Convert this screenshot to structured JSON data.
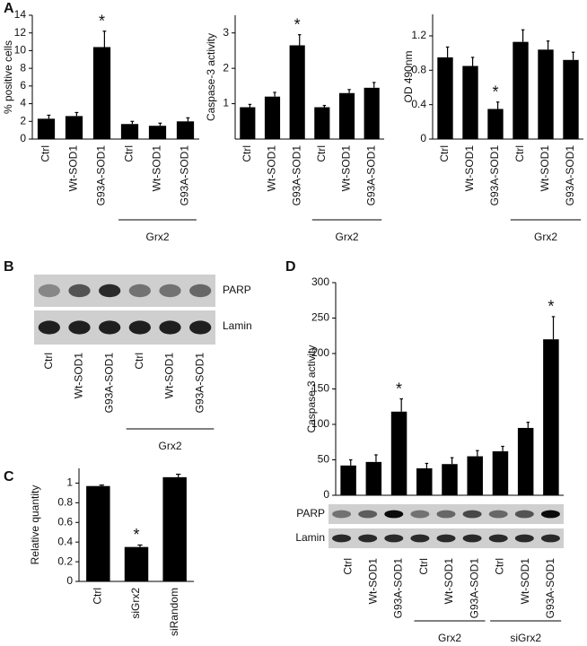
{
  "panel_labels": [
    "A",
    "B",
    "C",
    "D"
  ],
  "blot": {
    "rows": [
      "PARP",
      "Lamin"
    ],
    "categories": [
      "Ctrl",
      "Wt-SOD1",
      "G93A-SOD1",
      "Ctrl",
      "Wt-SOD1",
      "G93A-SOD1"
    ],
    "group_labels": [
      null,
      null,
      null,
      "Grx2",
      "Grx2",
      "Grx2"
    ]
  },
  "chart_data": [
    {
      "type": "bar",
      "y_label": "% positive cells",
      "color": "#000000",
      "categories": [
        "Ctrl",
        "Wt-SOD1",
        "G93A-SOD1",
        "Ctrl",
        "Wt-SOD1",
        "G93A-SOD1"
      ],
      "values": [
        2.3,
        2.6,
        10.4,
        1.7,
        1.5,
        2.0
      ],
      "errors": [
        0.4,
        0.4,
        1.8,
        0.3,
        0.3,
        0.4
      ],
      "annotations": [
        null,
        null,
        "*",
        null,
        null,
        null
      ],
      "group_labels": [
        null,
        null,
        null,
        "Grx2",
        "Grx2",
        "Grx2"
      ],
      "ylim": [
        0,
        14
      ],
      "yticks": [
        0,
        2,
        4,
        6,
        8,
        10,
        12,
        14
      ]
    },
    {
      "type": "bar",
      "y_label": "Caspase-3 activity",
      "color": "#000000",
      "categories": [
        "Ctrl",
        "Wt-SOD1",
        "G93A-SOD1",
        "Ctrl",
        "Wt-SOD1",
        "G93A-SOD1"
      ],
      "values": [
        0.9,
        1.2,
        2.65,
        0.9,
        1.3,
        1.45
      ],
      "errors": [
        0.08,
        0.12,
        0.3,
        0.05,
        0.1,
        0.15
      ],
      "annotations": [
        null,
        null,
        "*",
        null,
        null,
        null
      ],
      "group_labels": [
        null,
        null,
        null,
        "Grx2",
        "Grx2",
        "Grx2"
      ],
      "ylim": [
        0,
        3.5
      ],
      "yticks": [
        1,
        2,
        3
      ]
    },
    {
      "type": "bar",
      "y_label": "OD 490nm",
      "color": "#000000",
      "categories": [
        "Ctrl",
        "Wt-SOD1",
        "G93A-SOD1",
        "Ctrl",
        "Wt-SOD1",
        "G93A-SOD1"
      ],
      "values": [
        0.95,
        0.85,
        0.35,
        1.13,
        1.04,
        0.92
      ],
      "errors": [
        0.12,
        0.1,
        0.08,
        0.14,
        0.1,
        0.09
      ],
      "annotations": [
        null,
        null,
        "*",
        null,
        null,
        null
      ],
      "group_labels": [
        null,
        null,
        null,
        "Grx2",
        "Grx2",
        "Grx2"
      ],
      "ylim": [
        0,
        1.45
      ],
      "yticks": [
        0,
        0.4,
        0.8,
        1.2
      ]
    },
    {
      "type": "bar",
      "y_label": "Relative quantity",
      "color": "#000000",
      "categories": [
        "Ctrl",
        "siGrx2",
        "siRandom"
      ],
      "values": [
        0.97,
        0.35,
        1.06
      ],
      "errors": [
        0.01,
        0.02,
        0.03
      ],
      "annotations": [
        null,
        "*",
        null
      ],
      "group_labels": [
        null,
        null,
        null
      ],
      "ylim": [
        0,
        1.15
      ],
      "yticks": [
        0,
        0.2,
        0.4,
        0.6,
        0.8,
        1
      ]
    },
    {
      "type": "bar",
      "y_label": "Caspase-3 activity",
      "color": "#000000",
      "categories": [
        "Ctrl",
        "Wt-SOD1",
        "G93A-SOD1",
        "Ctrl",
        "Wt-SOD1",
        "G93A-SOD1",
        "Ctrl",
        "Wt-SOD1",
        "G93A-SOD1"
      ],
      "values": [
        42,
        47,
        118,
        38,
        44,
        55,
        62,
        95,
        220
      ],
      "errors": [
        8,
        10,
        18,
        7,
        9,
        8,
        7,
        8,
        32
      ],
      "annotations": [
        null,
        null,
        "*",
        null,
        null,
        null,
        null,
        null,
        "*"
      ],
      "group_labels": [
        null,
        null,
        null,
        "Grx2",
        "Grx2",
        "Grx2",
        "siGrx2",
        "siGrx2",
        "siGrx2"
      ],
      "blot_rows": [
        "PARP",
        "Lamin"
      ],
      "ylim": [
        0,
        300
      ],
      "yticks": [
        0,
        50,
        100,
        150,
        200,
        250,
        300
      ]
    }
  ]
}
